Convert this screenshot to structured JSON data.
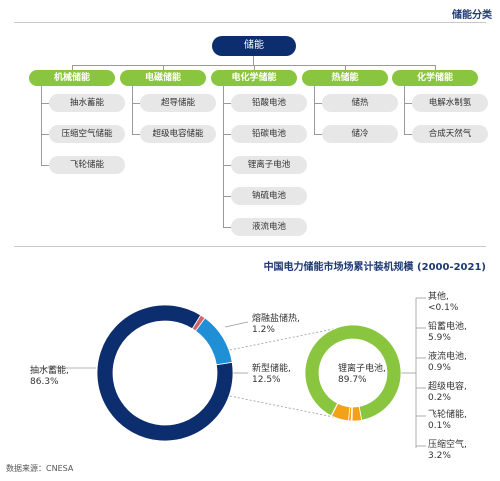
{
  "header": {
    "title": "储能分类"
  },
  "tree": {
    "root": "储能",
    "categories": [
      {
        "label": "机械储能",
        "children": [
          "抽水蓄能",
          "压缩空气储能",
          "飞轮储能"
        ]
      },
      {
        "label": "电磁储能",
        "children": [
          "超导储能",
          "超级电容储能"
        ]
      },
      {
        "label": "电化学储能",
        "children": [
          "铅酸电池",
          "铅碳电池",
          "锂离子电池",
          "钠硫电池",
          "液流电池"
        ]
      },
      {
        "label": "热储能",
        "children": [
          "储热",
          "储冷"
        ]
      },
      {
        "label": "化学储能",
        "children": [
          "电解水制氢",
          "合成天然气"
        ]
      }
    ]
  },
  "colors": {
    "navy": "#0d2e6e",
    "green": "#8ac53f",
    "blue": "#1f8fd6",
    "red": "#d0666a",
    "orange": "#f4a11a",
    "gray": "#e7e7e7"
  },
  "chart_title": "中国电力储能市场场累计装机规模 (2000-2021)",
  "chart_data": [
    {
      "type": "pie",
      "donut": true,
      "slices": [
        {
          "label": "抽水蓄能,",
          "value_text": "86.3%",
          "value": 86.3,
          "color": "#0d2e6e"
        },
        {
          "label": "熔融盐储热,",
          "value_text": "1.2%",
          "value": 1.2,
          "color": "#d0666a"
        },
        {
          "label": "新型储能,",
          "value_text": "12.5%",
          "value": 12.5,
          "color": "#1f8fd6"
        }
      ]
    },
    {
      "type": "pie",
      "donut": true,
      "slices": [
        {
          "label": "锂离子电池,",
          "value_text": "89.7%",
          "value": 89.7,
          "color": "#8ac53f"
        },
        {
          "label": "其他,",
          "value_text": "<0.1%",
          "value": 0.1,
          "color": "#f4a11a"
        },
        {
          "label": "铅蓄电池,",
          "value_text": "5.9%",
          "value": 5.9,
          "color": "#f4a11a"
        },
        {
          "label": "液流电池,",
          "value_text": "0.9%",
          "value": 0.9,
          "color": "#f4a11a"
        },
        {
          "label": "超级电容,",
          "value_text": "0.2%",
          "value": 0.2,
          "color": "#f4a11a"
        },
        {
          "label": "飞轮储能,",
          "value_text": "0.1%",
          "value": 0.1,
          "color": "#f4a11a"
        },
        {
          "label": "压缩空气,",
          "value_text": "3.2%",
          "value": 3.2,
          "color": "#f4a11a"
        }
      ]
    }
  ],
  "source": "数据来源：CNESA"
}
